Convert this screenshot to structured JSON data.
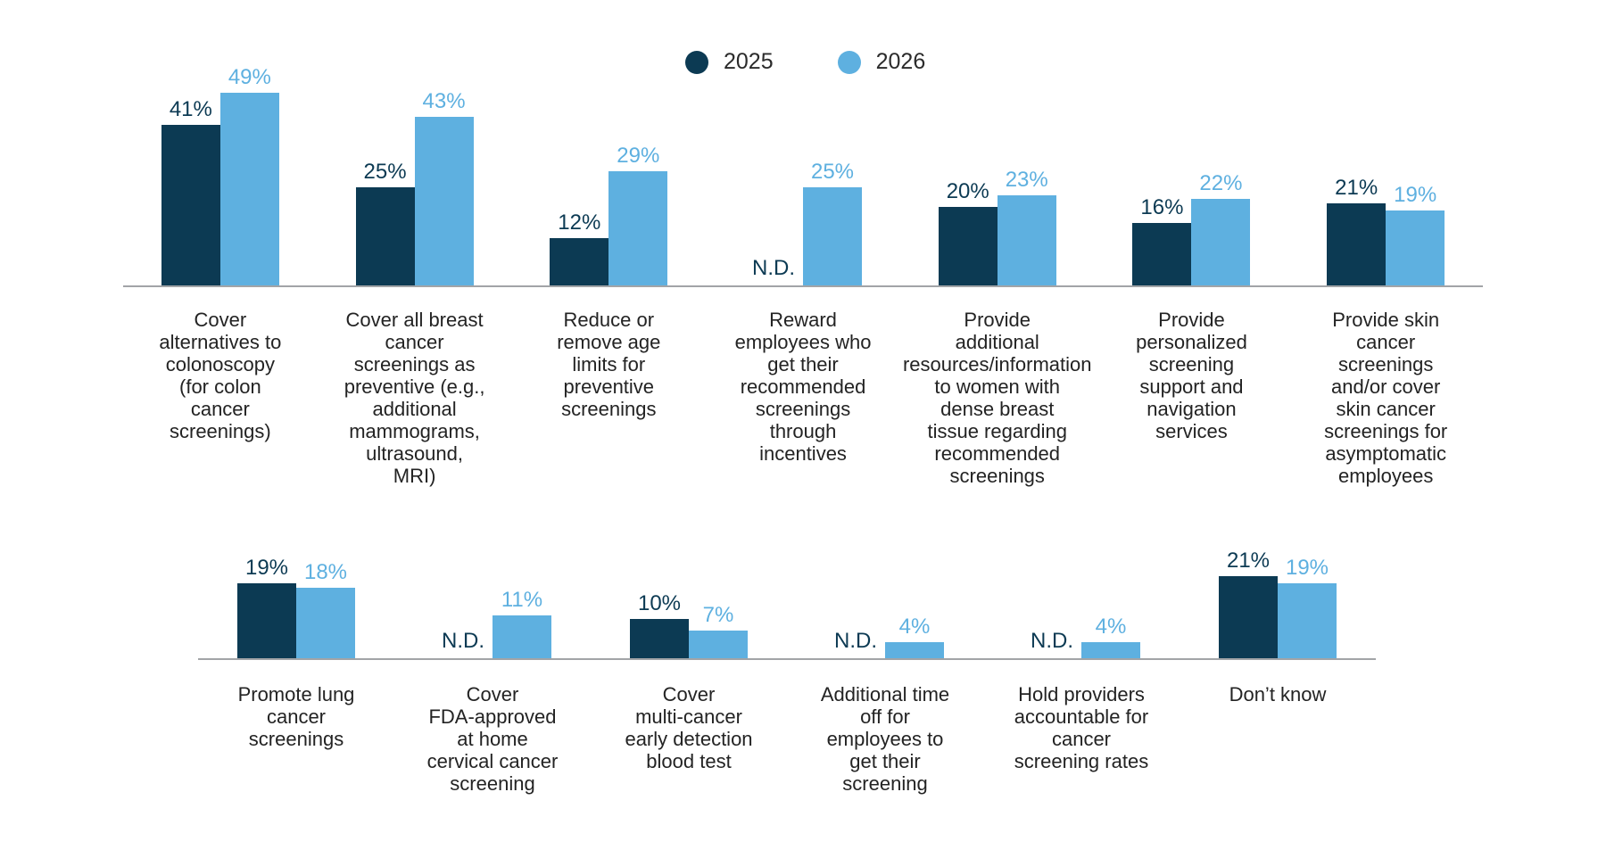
{
  "legend": {
    "items": [
      {
        "label": "2025",
        "color": "#0C3A53"
      },
      {
        "label": "2026",
        "color": "#5EB0E0"
      }
    ]
  },
  "chart_data": {
    "type": "bar",
    "unit": "%",
    "nd_label": "N.D.",
    "series": [
      "2025",
      "2026"
    ],
    "colors": [
      "#0C3A53",
      "#5EB0E0"
    ],
    "value_label_colors": [
      "#0C3A53",
      "#5EB0E0"
    ],
    "axis_line_color": "#a2a4a7",
    "ylim": [
      0,
      50
    ],
    "grid": false,
    "legend_position": "top-center",
    "rows": [
      {
        "groups": [
          {
            "label": "Cover\nalternatives to\ncolonoscopy\n(for colon\ncancer\nscreenings)",
            "values": [
              41,
              49
            ]
          },
          {
            "label": "Cover all breast\ncancer\nscreenings as\npreventive (e.g.,\nadditional\nmammograms,\nultrasound,\nMRI)",
            "values": [
              25,
              43
            ]
          },
          {
            "label": "Reduce or\nremove age\nlimits for\npreventive\nscreenings",
            "values": [
              12,
              29
            ]
          },
          {
            "label": "Reward\nemployees who\nget their\nrecommended\nscreenings\nthrough\nincentives",
            "values": [
              null,
              25
            ]
          },
          {
            "label": "Provide\nadditional\nresources/information\nto women with\ndense breast\ntissue regarding\nrecommended\nscreenings",
            "values": [
              20,
              23
            ]
          },
          {
            "label": "Provide\npersonalized\nscreening\nsupport and\nnavigation\nservices",
            "values": [
              16,
              22
            ]
          },
          {
            "label": "Provide skin\ncancer\nscreenings\nand/or cover\nskin cancer\nscreenings for\nasymptomatic\nemployees",
            "values": [
              21,
              19
            ]
          }
        ]
      },
      {
        "groups": [
          {
            "label": "Promote lung\ncancer\nscreenings",
            "values": [
              19,
              18
            ]
          },
          {
            "label": "Cover\nFDA-approved\nat home\ncervical cancer\nscreening",
            "values": [
              null,
              11
            ]
          },
          {
            "label": "Cover\nmulti-cancer\nearly detection\nblood test",
            "values": [
              10,
              7
            ]
          },
          {
            "label": "Additional time\noff for\nemployees to\nget their\nscreening",
            "values": [
              null,
              4
            ]
          },
          {
            "label": "Hold providers\naccountable for\ncancer\nscreening rates",
            "values": [
              null,
              4
            ]
          },
          {
            "label": "Don’t know",
            "values": [
              21,
              19
            ]
          }
        ]
      }
    ]
  }
}
